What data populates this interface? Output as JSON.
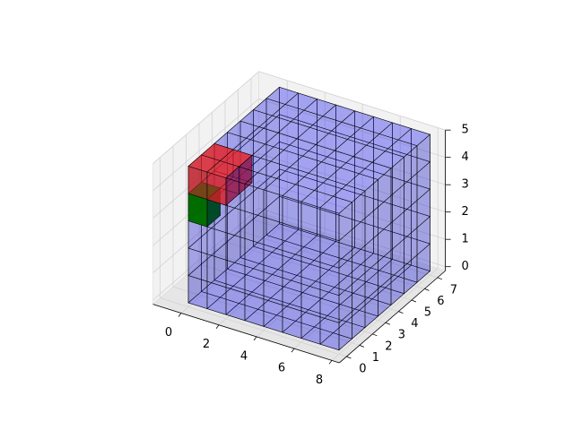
{
  "chart_data": {
    "type": "voxel",
    "title": "",
    "xlabel": "",
    "ylabel": "",
    "zlabel": "",
    "xlim": [
      0,
      8
    ],
    "ylim": [
      0,
      7
    ],
    "zlim": [
      0,
      5
    ],
    "xticks": [
      "0",
      "2",
      "4",
      "6",
      "8"
    ],
    "yticks": [
      "0",
      "1",
      "2",
      "3",
      "4",
      "5",
      "6",
      "7"
    ],
    "zticks": [
      "0",
      "1",
      "2",
      "3",
      "4",
      "5"
    ],
    "grid": true,
    "edge_color": "#000000",
    "pane_colors": {
      "walls": "#f2f2f2",
      "floor": "#e6e6e6",
      "grid": "#d3d3d3"
    },
    "voxels": [
      {
        "name": "blue",
        "color": "#0000ff",
        "alpha": 0.18,
        "x": [
          0,
          8
        ],
        "y": [
          0,
          7
        ],
        "z": [
          0,
          5
        ]
      },
      {
        "name": "red",
        "color": "#e8202e",
        "alpha": 0.6,
        "x": [
          0,
          2
        ],
        "y": [
          0,
          2
        ],
        "z": [
          4,
          5
        ]
      },
      {
        "name": "green",
        "color": "#008000",
        "alpha": 0.95,
        "x": [
          0,
          1
        ],
        "y": [
          0,
          1
        ],
        "z": [
          3,
          4
        ]
      }
    ]
  }
}
